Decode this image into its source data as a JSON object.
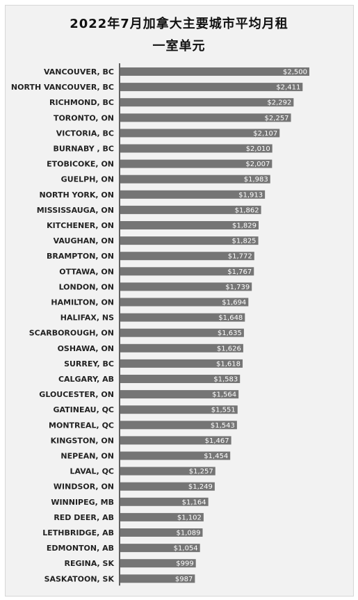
{
  "chart_data": {
    "type": "bar",
    "orientation": "horizontal",
    "title_line1": "2022年7月加拿大主要城市平均月租",
    "title_line2": "一室单元",
    "categories": [
      "VANCOUVER, BC",
      "NORTH VANCOUVER, BC",
      "RICHMOND, BC",
      "TORONTO, ON",
      "VICTORIA, BC",
      "BURNABY , BC",
      "ETOBICOKE, ON",
      "GUELPH, ON",
      "NORTH YORK, ON",
      "MISSISSAUGA, ON",
      "KITCHENER, ON",
      "VAUGHAN, ON",
      "BRAMPTON, ON",
      "OTTAWA, ON",
      "LONDON, ON",
      "HAMILTON, ON",
      "HALIFAX, NS",
      "SCARBOROUGH, ON",
      "OSHAWA, ON",
      "SURREY, BC",
      "CALGARY, AB",
      "GLOUCESTER, ON",
      "GATINEAU, QC",
      "MONTREAL, QC",
      "KINGSTON, ON",
      "NEPEAN, ON",
      "LAVAL, QC",
      "WINDSOR, ON",
      "WINNIPEG, MB",
      "RED DEER, AB",
      "LETHBRIDGE, AB",
      "EDMONTON, AB",
      "REGINA, SK",
      "SASKATOON, SK"
    ],
    "values": [
      2500,
      2411,
      2292,
      2257,
      2107,
      2010,
      2007,
      1983,
      1913,
      1862,
      1829,
      1825,
      1772,
      1767,
      1739,
      1694,
      1648,
      1635,
      1626,
      1618,
      1583,
      1564,
      1551,
      1543,
      1467,
      1454,
      1257,
      1249,
      1164,
      1102,
      1089,
      1054,
      999,
      987
    ],
    "value_labels": [
      "$2,500",
      "$2,411",
      "$2,292",
      "$2,257",
      "$2,107",
      "$2,010",
      "$2,007",
      "$1,983",
      "$1,913",
      "$1,862",
      "$1,829",
      "$1,825",
      "$1,772",
      "$1,767",
      "$1,739",
      "$1,694",
      "$1,648",
      "$1,635",
      "$1,626",
      "$1,618",
      "$1,583",
      "$1,564",
      "$1,551",
      "$1,543",
      "$1,467",
      "$1,454",
      "$1,257",
      "$1,249",
      "$1,164",
      "$1,102",
      "$1,089",
      "$1,054",
      "$999",
      "$987"
    ],
    "xlim": [
      0,
      2500
    ],
    "grid": false,
    "colors": {
      "bar": "#757575",
      "axis": "#333333",
      "panel": "#f2f2f2"
    }
  }
}
